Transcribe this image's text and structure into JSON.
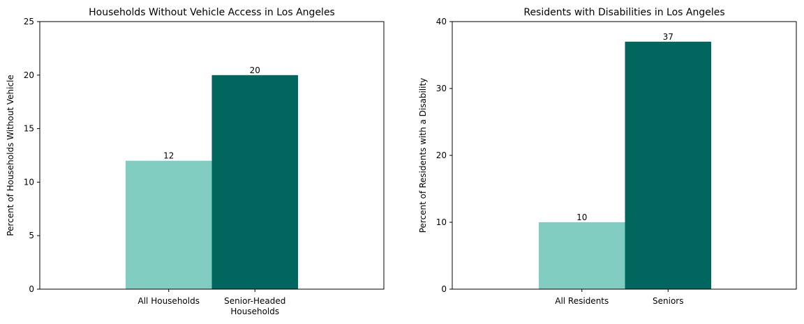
{
  "chart_data": [
    {
      "type": "bar",
      "title": "Households Without Vehicle Access in Los Angeles",
      "ylabel": "Percent of Households Without Vehicle",
      "xlabel": "",
      "ylim": [
        0,
        25
      ],
      "yticks": [
        0,
        5,
        10,
        15,
        20,
        25
      ],
      "categories": [
        [
          "All Households"
        ],
        [
          "Senior-Headed",
          "Households"
        ]
      ],
      "values": [
        12,
        20
      ],
      "data_labels": [
        "12",
        "20"
      ],
      "colors": [
        "#81cdc1",
        "#01665e"
      ],
      "grid": false
    },
    {
      "type": "bar",
      "title": "Residents with Disabilities in Los Angeles",
      "ylabel": "Percent of Residents with a Disability",
      "xlabel": "",
      "ylim": [
        0,
        40
      ],
      "yticks": [
        0,
        10,
        20,
        30,
        40
      ],
      "categories": [
        [
          "All Residents"
        ],
        [
          "Seniors"
        ]
      ],
      "values": [
        10,
        37
      ],
      "data_labels": [
        "10",
        "37"
      ],
      "colors": [
        "#81cdc1",
        "#01665e"
      ],
      "grid": false
    }
  ]
}
